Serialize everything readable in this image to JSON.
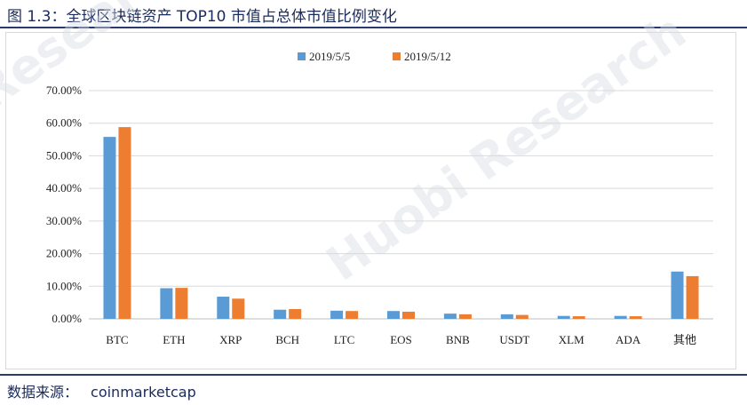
{
  "figure": {
    "title": "图 1.3：全球区块链资产 TOP10 市值占总体市值比例变化",
    "source_label": "数据来源：",
    "source_value": "coinmarketcap",
    "watermark_left": "Research",
    "watermark_main": "Huobi Research"
  },
  "chart_data": {
    "type": "bar",
    "categories": [
      "BTC",
      "ETH",
      "XRP",
      "BCH",
      "LTC",
      "EOS",
      "BNB",
      "USDT",
      "XLM",
      "ADA",
      "其他"
    ],
    "series": [
      {
        "name": "2019/5/5",
        "values": [
          55.8,
          9.4,
          6.8,
          2.8,
          2.5,
          2.4,
          1.6,
          1.4,
          0.9,
          0.9,
          14.5
        ]
      },
      {
        "name": "2019/5/12",
        "values": [
          58.8,
          9.5,
          6.2,
          3.0,
          2.4,
          2.2,
          1.4,
          1.2,
          0.8,
          0.8,
          13.1
        ]
      }
    ],
    "ylim": [
      0,
      70
    ],
    "yticks": [
      0,
      10,
      20,
      30,
      40,
      50,
      60,
      70
    ],
    "ytick_labels": [
      "0.00%",
      "10.00%",
      "20.00%",
      "30.00%",
      "40.00%",
      "50.00%",
      "60.00%",
      "70.00%"
    ],
    "grid": true,
    "legend_position": "top-center",
    "colors": [
      "#5b9bd5",
      "#ed7d31"
    ]
  }
}
